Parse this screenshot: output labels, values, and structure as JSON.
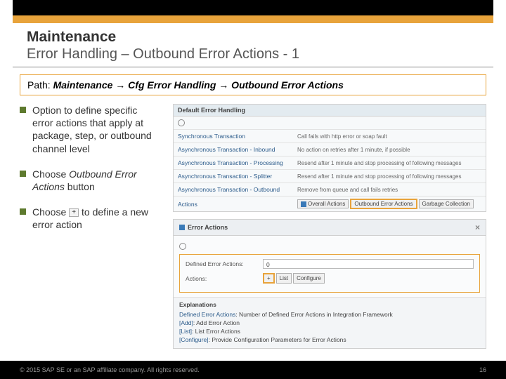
{
  "header": {
    "title": "Maintenance",
    "subtitle": "Error Handling – Outbound Error Actions - 1"
  },
  "path": {
    "label": "Path:  ",
    "value": "Maintenance → Cfg Error Handling → Outbound Error Actions"
  },
  "bullets": {
    "b1": "Option to define specific error actions that apply at package, step, or outbound channel level",
    "b2_pre": "Choose ",
    "b2_em": "Outbound Error Actions",
    "b2_post": " button",
    "b3_pre": "Choose",
    "b3_post": "to define a new error action"
  },
  "panel1": {
    "title": "Default Error Handling",
    "rows": [
      {
        "c1": "Synchronous Transaction",
        "c2": "Call fails with http error or soap fault"
      },
      {
        "c1": "Asynchronous Transaction - Inbound",
        "c2": "No action on retries after 1 minute, if possible"
      },
      {
        "c1": "Asynchronous Transaction - Processing",
        "c2": "Resend after 1 minute and stop processing of following messages"
      },
      {
        "c1": "Asynchronous Transaction - Splitter",
        "c2": "Resend after 1 minute and stop processing of following messages"
      },
      {
        "c1": "Asynchronous Transaction - Outbound",
        "c2": "Remove from queue and call fails retries"
      }
    ],
    "actions_label": "Actions",
    "btns": {
      "overall": "Overall Actions",
      "outbound": "Outbound Error Actions",
      "gc": "Garbage Collection"
    }
  },
  "panel2": {
    "title": "Error Actions",
    "def_label": "Defined Error Actions:",
    "def_val": "0",
    "act_label": "Actions:",
    "btns": {
      "list": "List",
      "cfg": "Configure"
    },
    "explain_title": "Explanations",
    "lines": [
      {
        "k": "Defined Error Actions",
        "v": ": Number of Defined Error Actions in Integration Framework"
      },
      {
        "k": "[Add]",
        "v": ": Add Error Action"
      },
      {
        "k": "[List]",
        "v": ": List Error Actions"
      },
      {
        "k": "[Configure]",
        "v": ": Provide Configuration Parameters for Error Actions"
      }
    ]
  },
  "footer": {
    "copyright": "© 2015 SAP SE or an SAP affiliate company. All rights reserved.",
    "page": "16"
  },
  "colors": {
    "accent": "#e8a33b",
    "bullet": "#5e7a2e",
    "link": "#2a5a8a"
  }
}
